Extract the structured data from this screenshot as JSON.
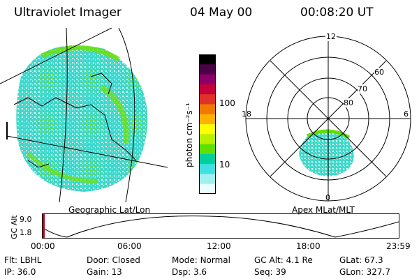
{
  "header": {
    "title": "Ultraviolet Imager",
    "date": "04 May 00",
    "time": "00:08:20 UT"
  },
  "left_panel": {
    "label": "Geographic Lat/Lon"
  },
  "colorbar": {
    "unit_label": "photon cm⁻²s⁻¹",
    "ticks": [
      "100",
      "10"
    ],
    "colors": [
      "#000000",
      "#4b0047",
      "#8a0068",
      "#c4003a",
      "#e0302a",
      "#f07a00",
      "#ffb000",
      "#ffff00",
      "#b8f000",
      "#60e000",
      "#00d0a0",
      "#40e0e0",
      "#a0f0f0",
      "#e8ffff"
    ]
  },
  "polar_plot": {
    "label": "Apex MLat/MLT",
    "mlt_labels": {
      "top": "12",
      "left": "18",
      "right": "6",
      "bottom": "0"
    },
    "lat_labels": [
      "60",
      "70",
      "80"
    ]
  },
  "orbit_plot": {
    "ylabel": "GC Alt",
    "y_ticks": [
      "9.0",
      "1.8"
    ],
    "x_ticks": [
      "00:00",
      "06:00",
      "12:00",
      "18:00",
      "23:59"
    ]
  },
  "status": {
    "row1": [
      {
        "label": "Flt:",
        "value": "LBHL"
      },
      {
        "label": "Door:",
        "value": "Closed"
      },
      {
        "label": "Mode:",
        "value": "Normal"
      },
      {
        "label": "GC Alt:",
        "value": "4.1 Re"
      },
      {
        "label": "GLat:",
        "value": "67.3"
      }
    ],
    "row2": [
      {
        "label": "IP:",
        "value": "36.0"
      },
      {
        "label": "Gain:",
        "value": "13"
      },
      {
        "label": "Dsp:",
        "value": "3.6"
      },
      {
        "label": "Seq:",
        "value": "39"
      },
      {
        "label": "GLon:",
        "value": "327.7"
      }
    ]
  }
}
